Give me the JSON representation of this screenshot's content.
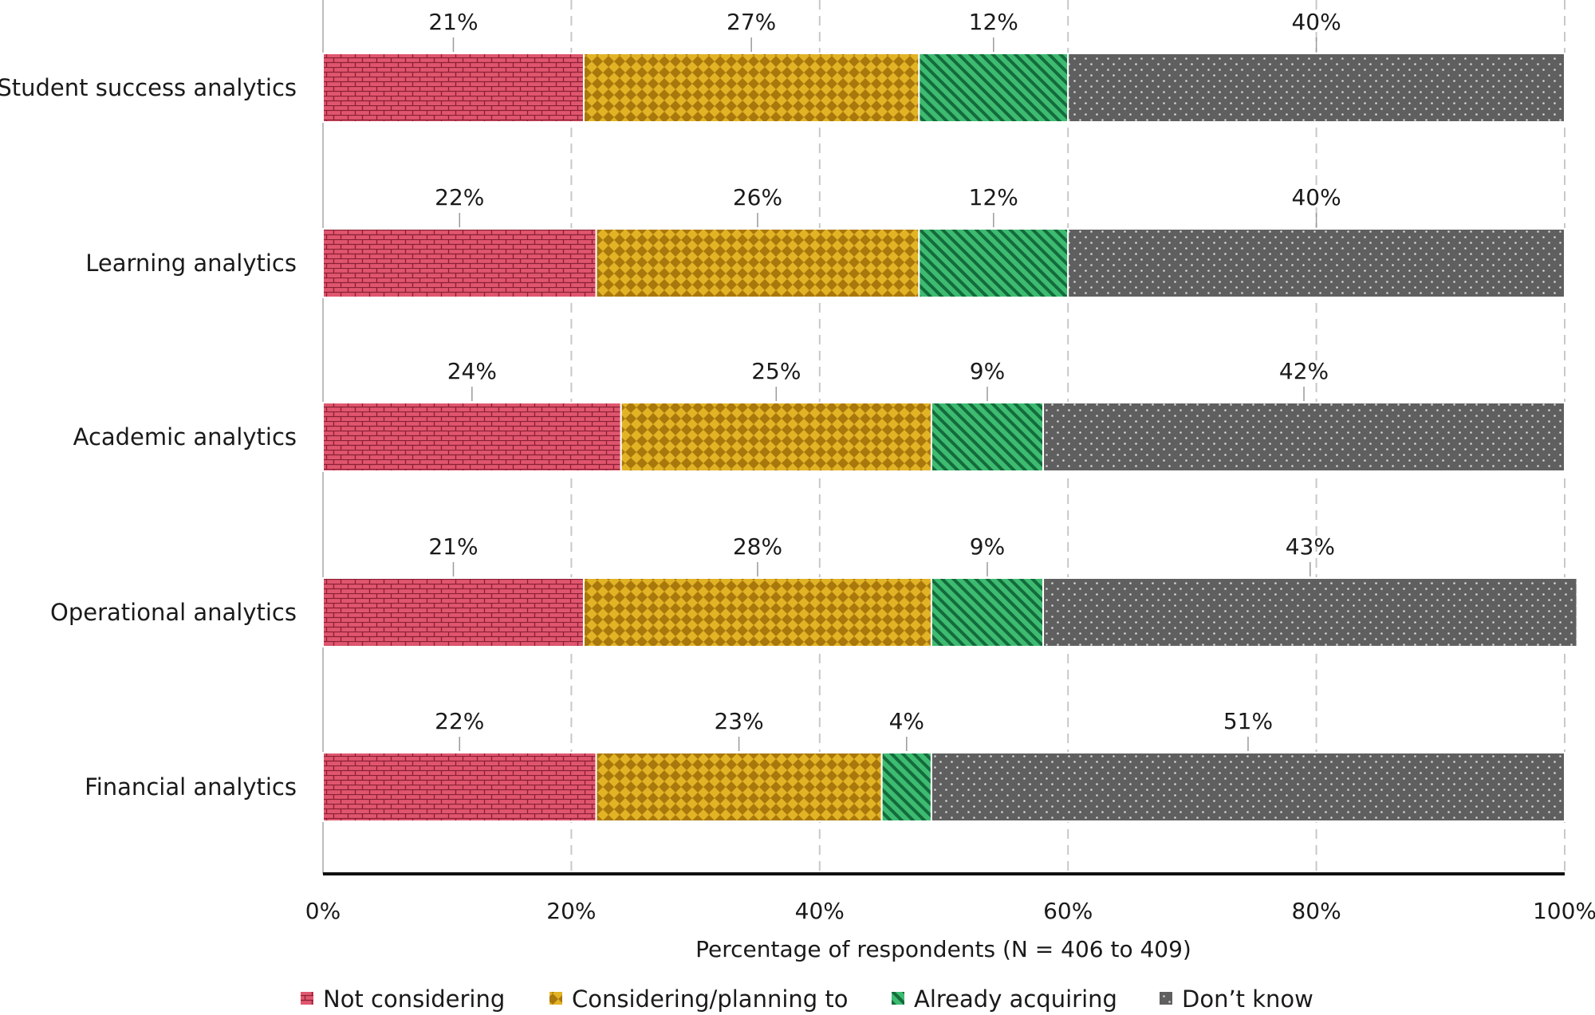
{
  "chart_data": {
    "type": "bar",
    "orientation": "horizontal",
    "stacked": true,
    "categories": [
      "Student success analytics",
      "Learning analytics",
      "Academic analytics",
      "Operational analytics",
      "Financial analytics"
    ],
    "series": [
      {
        "name": "Not considering",
        "color": "#e0566e",
        "pattern": "brick",
        "values": [
          21,
          22,
          24,
          21,
          22
        ]
      },
      {
        "name": "Considering/planning to",
        "color": "#d4a017",
        "pattern": "checker",
        "values": [
          27,
          26,
          25,
          28,
          23
        ]
      },
      {
        "name": "Already acquiring",
        "color": "#34b36a",
        "pattern": "diagonal",
        "values": [
          12,
          12,
          9,
          9,
          4
        ]
      },
      {
        "name": "Don’t know",
        "color": "#5f5f5f",
        "pattern": "dots",
        "values": [
          40,
          40,
          42,
          43,
          51
        ]
      }
    ],
    "data_labels": [
      [
        "21%",
        "27%",
        "12%",
        "40%"
      ],
      [
        "22%",
        "26%",
        "12%",
        "40%"
      ],
      [
        "24%",
        "25%",
        "9%",
        "42%"
      ],
      [
        "21%",
        "28%",
        "9%",
        "43%"
      ],
      [
        "22%",
        "23%",
        "4%",
        "51%"
      ]
    ],
    "xlim": [
      0,
      100
    ],
    "xticks": [
      0,
      20,
      40,
      60,
      80,
      100
    ],
    "xtick_labels": [
      "0%",
      "20%",
      "40%",
      "60%",
      "80%",
      "100%"
    ],
    "xlabel": "Percentage of respondents (N = 406 to 409)",
    "ylabel": "",
    "title": "",
    "grid": "vertical dashed",
    "legend_position": "bottom"
  }
}
